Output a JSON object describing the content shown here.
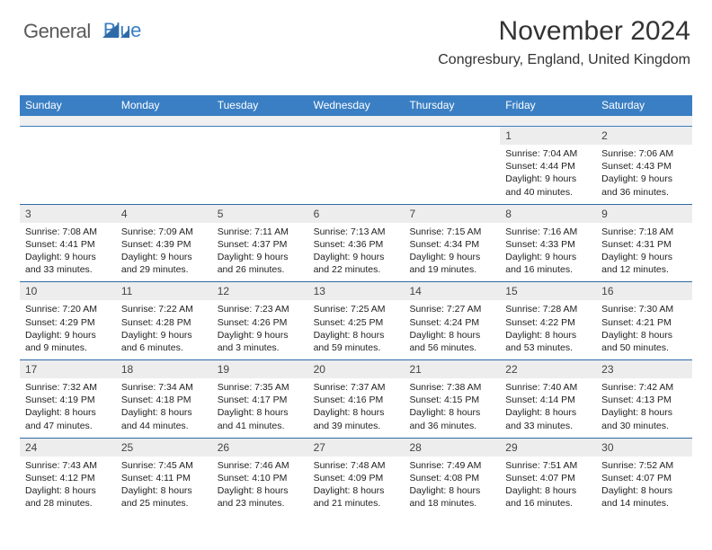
{
  "logo": {
    "textGeneral": "General",
    "textBlue": "Blue",
    "generalColor": "#5a5a5a",
    "blueColor": "#3a7fc4"
  },
  "title": "November 2024",
  "location": "Congresbury, England, United Kingdom",
  "dayHeaders": [
    "Sunday",
    "Monday",
    "Tuesday",
    "Wednesday",
    "Thursday",
    "Friday",
    "Saturday"
  ],
  "colors": {
    "headerBg": "#3a7fc4",
    "headerText": "#ffffff",
    "dayNumBg": "#ededed",
    "borderTop": "#2e6aa8",
    "bodyText": "#222222"
  },
  "weeks": [
    [
      {
        "n": "",
        "sunrise": "",
        "sunset": "",
        "daylight": ""
      },
      {
        "n": "",
        "sunrise": "",
        "sunset": "",
        "daylight": ""
      },
      {
        "n": "",
        "sunrise": "",
        "sunset": "",
        "daylight": ""
      },
      {
        "n": "",
        "sunrise": "",
        "sunset": "",
        "daylight": ""
      },
      {
        "n": "",
        "sunrise": "",
        "sunset": "",
        "daylight": ""
      },
      {
        "n": "1",
        "sunrise": "Sunrise: 7:04 AM",
        "sunset": "Sunset: 4:44 PM",
        "daylight": "Daylight: 9 hours and 40 minutes."
      },
      {
        "n": "2",
        "sunrise": "Sunrise: 7:06 AM",
        "sunset": "Sunset: 4:43 PM",
        "daylight": "Daylight: 9 hours and 36 minutes."
      }
    ],
    [
      {
        "n": "3",
        "sunrise": "Sunrise: 7:08 AM",
        "sunset": "Sunset: 4:41 PM",
        "daylight": "Daylight: 9 hours and 33 minutes."
      },
      {
        "n": "4",
        "sunrise": "Sunrise: 7:09 AM",
        "sunset": "Sunset: 4:39 PM",
        "daylight": "Daylight: 9 hours and 29 minutes."
      },
      {
        "n": "5",
        "sunrise": "Sunrise: 7:11 AM",
        "sunset": "Sunset: 4:37 PM",
        "daylight": "Daylight: 9 hours and 26 minutes."
      },
      {
        "n": "6",
        "sunrise": "Sunrise: 7:13 AM",
        "sunset": "Sunset: 4:36 PM",
        "daylight": "Daylight: 9 hours and 22 minutes."
      },
      {
        "n": "7",
        "sunrise": "Sunrise: 7:15 AM",
        "sunset": "Sunset: 4:34 PM",
        "daylight": "Daylight: 9 hours and 19 minutes."
      },
      {
        "n": "8",
        "sunrise": "Sunrise: 7:16 AM",
        "sunset": "Sunset: 4:33 PM",
        "daylight": "Daylight: 9 hours and 16 minutes."
      },
      {
        "n": "9",
        "sunrise": "Sunrise: 7:18 AM",
        "sunset": "Sunset: 4:31 PM",
        "daylight": "Daylight: 9 hours and 12 minutes."
      }
    ],
    [
      {
        "n": "10",
        "sunrise": "Sunrise: 7:20 AM",
        "sunset": "Sunset: 4:29 PM",
        "daylight": "Daylight: 9 hours and 9 minutes."
      },
      {
        "n": "11",
        "sunrise": "Sunrise: 7:22 AM",
        "sunset": "Sunset: 4:28 PM",
        "daylight": "Daylight: 9 hours and 6 minutes."
      },
      {
        "n": "12",
        "sunrise": "Sunrise: 7:23 AM",
        "sunset": "Sunset: 4:26 PM",
        "daylight": "Daylight: 9 hours and 3 minutes."
      },
      {
        "n": "13",
        "sunrise": "Sunrise: 7:25 AM",
        "sunset": "Sunset: 4:25 PM",
        "daylight": "Daylight: 8 hours and 59 minutes."
      },
      {
        "n": "14",
        "sunrise": "Sunrise: 7:27 AM",
        "sunset": "Sunset: 4:24 PM",
        "daylight": "Daylight: 8 hours and 56 minutes."
      },
      {
        "n": "15",
        "sunrise": "Sunrise: 7:28 AM",
        "sunset": "Sunset: 4:22 PM",
        "daylight": "Daylight: 8 hours and 53 minutes."
      },
      {
        "n": "16",
        "sunrise": "Sunrise: 7:30 AM",
        "sunset": "Sunset: 4:21 PM",
        "daylight": "Daylight: 8 hours and 50 minutes."
      }
    ],
    [
      {
        "n": "17",
        "sunrise": "Sunrise: 7:32 AM",
        "sunset": "Sunset: 4:19 PM",
        "daylight": "Daylight: 8 hours and 47 minutes."
      },
      {
        "n": "18",
        "sunrise": "Sunrise: 7:34 AM",
        "sunset": "Sunset: 4:18 PM",
        "daylight": "Daylight: 8 hours and 44 minutes."
      },
      {
        "n": "19",
        "sunrise": "Sunrise: 7:35 AM",
        "sunset": "Sunset: 4:17 PM",
        "daylight": "Daylight: 8 hours and 41 minutes."
      },
      {
        "n": "20",
        "sunrise": "Sunrise: 7:37 AM",
        "sunset": "Sunset: 4:16 PM",
        "daylight": "Daylight: 8 hours and 39 minutes."
      },
      {
        "n": "21",
        "sunrise": "Sunrise: 7:38 AM",
        "sunset": "Sunset: 4:15 PM",
        "daylight": "Daylight: 8 hours and 36 minutes."
      },
      {
        "n": "22",
        "sunrise": "Sunrise: 7:40 AM",
        "sunset": "Sunset: 4:14 PM",
        "daylight": "Daylight: 8 hours and 33 minutes."
      },
      {
        "n": "23",
        "sunrise": "Sunrise: 7:42 AM",
        "sunset": "Sunset: 4:13 PM",
        "daylight": "Daylight: 8 hours and 30 minutes."
      }
    ],
    [
      {
        "n": "24",
        "sunrise": "Sunrise: 7:43 AM",
        "sunset": "Sunset: 4:12 PM",
        "daylight": "Daylight: 8 hours and 28 minutes."
      },
      {
        "n": "25",
        "sunrise": "Sunrise: 7:45 AM",
        "sunset": "Sunset: 4:11 PM",
        "daylight": "Daylight: 8 hours and 25 minutes."
      },
      {
        "n": "26",
        "sunrise": "Sunrise: 7:46 AM",
        "sunset": "Sunset: 4:10 PM",
        "daylight": "Daylight: 8 hours and 23 minutes."
      },
      {
        "n": "27",
        "sunrise": "Sunrise: 7:48 AM",
        "sunset": "Sunset: 4:09 PM",
        "daylight": "Daylight: 8 hours and 21 minutes."
      },
      {
        "n": "28",
        "sunrise": "Sunrise: 7:49 AM",
        "sunset": "Sunset: 4:08 PM",
        "daylight": "Daylight: 8 hours and 18 minutes."
      },
      {
        "n": "29",
        "sunrise": "Sunrise: 7:51 AM",
        "sunset": "Sunset: 4:07 PM",
        "daylight": "Daylight: 8 hours and 16 minutes."
      },
      {
        "n": "30",
        "sunrise": "Sunrise: 7:52 AM",
        "sunset": "Sunset: 4:07 PM",
        "daylight": "Daylight: 8 hours and 14 minutes."
      }
    ]
  ]
}
